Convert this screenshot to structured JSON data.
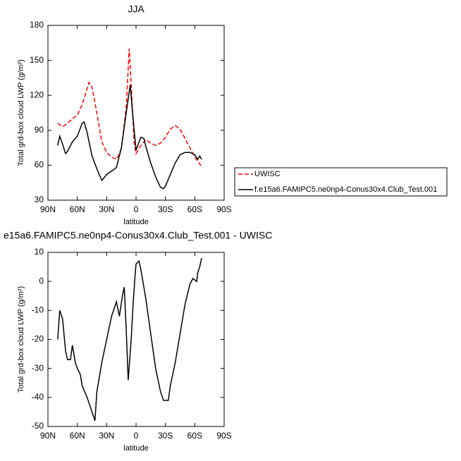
{
  "chart_data": [
    {
      "type": "line",
      "title": "JJA",
      "xlabel": "latitude",
      "ylabel": "Total grd-box cloud LWP (g/m²)",
      "xlim": [
        90,
        -90
      ],
      "ylim": [
        30,
        180
      ],
      "xticks": [
        {
          "value": 90,
          "label": "90N"
        },
        {
          "value": 60,
          "label": "60N"
        },
        {
          "value": 30,
          "label": "30N"
        },
        0,
        {
          "value": -30,
          "label": "30S"
        },
        {
          "value": -60,
          "label": "60S"
        },
        {
          "value": -90,
          "label": "90S"
        }
      ],
      "yticks": [
        30,
        60,
        90,
        120,
        150,
        180
      ],
      "legend": "right",
      "series": [
        {
          "name": "UWISC",
          "color": "#ff0000",
          "dash": "dashed",
          "x": [
            80,
            75,
            70,
            65,
            60,
            55,
            48,
            45,
            40,
            35,
            30,
            25,
            20,
            15,
            10,
            7,
            5,
            2,
            0,
            -5,
            -10,
            -15,
            -20,
            -25,
            -30,
            -35,
            -40,
            -45,
            -50,
            -55,
            -60,
            -65,
            -68
          ],
          "values": [
            96,
            93,
            96,
            100,
            103,
            112,
            131,
            127,
            105,
            80,
            71,
            67,
            65,
            74,
            110,
            160,
            130,
            80,
            70,
            77,
            82,
            79,
            77,
            79,
            84,
            91,
            94,
            91,
            83,
            75,
            67,
            61,
            58
          ]
        },
        {
          "name": "f.e15a6.FAMIPC5.ne0np4-Conus30x4.Club_Test.001",
          "color": "#000000",
          "dash": "solid",
          "x": [
            80,
            78,
            75,
            72,
            70,
            65,
            60,
            55,
            53,
            50,
            45,
            40,
            35,
            30,
            25,
            20,
            15,
            10,
            6,
            3,
            0,
            -5,
            -8,
            -10,
            -15,
            -20,
            -25,
            -28,
            -30,
            -35,
            -40,
            -45,
            -50,
            -55,
            -60,
            -63,
            -65,
            -67
          ],
          "values": [
            77,
            85,
            78,
            70,
            72,
            80,
            85,
            96,
            97,
            88,
            68,
            57,
            47,
            52,
            55,
            58,
            75,
            105,
            129,
            100,
            73,
            84,
            83,
            76,
            62,
            50,
            41,
            40,
            42,
            52,
            62,
            69,
            71,
            71,
            69,
            65,
            68,
            65
          ]
        }
      ]
    },
    {
      "type": "line",
      "title": "e15a6.FAMIPC5.ne0np4-Conus30x4.Club_Test.001 - UWISC",
      "xlabel": "latitude",
      "ylabel": "Total grd-box cloud LWP (g/m²)",
      "xlim": [
        90,
        -90
      ],
      "ylim": [
        -50,
        10
      ],
      "xticks": [
        {
          "value": 90,
          "label": "90N"
        },
        {
          "value": 60,
          "label": "60N"
        },
        {
          "value": 30,
          "label": "30N"
        },
        0,
        {
          "value": -30,
          "label": "30S"
        },
        {
          "value": -60,
          "label": "60S"
        },
        {
          "value": -90,
          "label": "90S"
        }
      ],
      "yticks": [
        -50,
        -40,
        -30,
        -20,
        -10,
        0,
        10
      ],
      "series": [
        {
          "color": "#000000",
          "dash": "solid",
          "x": [
            80,
            78,
            75,
            72,
            70,
            67,
            65,
            62,
            60,
            57,
            55,
            50,
            45,
            42,
            40,
            35,
            30,
            25,
            20,
            17,
            14,
            12,
            10,
            8,
            5,
            3,
            1,
            0,
            -3,
            -5,
            -10,
            -15,
            -20,
            -25,
            -28,
            -33,
            -35,
            -40,
            -45,
            -50,
            -55,
            -58,
            -62,
            -63,
            -65,
            -67
          ],
          "values": [
            -20,
            -10,
            -13,
            -24,
            -27,
            -27,
            -22,
            -28,
            -30,
            -32,
            -36,
            -40,
            -45,
            -48,
            -38,
            -28,
            -20,
            -12,
            -7,
            -12,
            -5,
            -2,
            -17,
            -34,
            -20,
            -8,
            2,
            6,
            7,
            4,
            -6,
            -18,
            -30,
            -38,
            -41,
            -41,
            -36,
            -28,
            -18,
            -8,
            -1,
            1,
            0,
            3,
            5,
            8
          ]
        }
      ]
    }
  ]
}
